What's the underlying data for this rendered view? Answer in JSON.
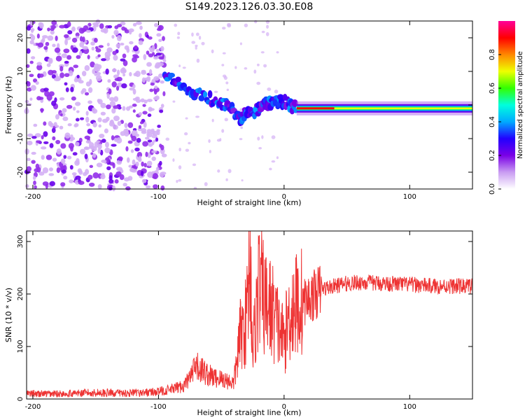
{
  "title": "S149.2023.126.03.30.E08",
  "chart_data": [
    {
      "type": "heatmap",
      "xlabel": "Height of straight line (km)",
      "ylabel": "Frequency (Hz)",
      "xlim": [
        -205,
        150
      ],
      "ylim": [
        -25,
        25
      ],
      "xticks": [
        -200,
        -100,
        0,
        100
      ],
      "yticks": [
        -20,
        -10,
        0,
        10,
        20
      ],
      "colorbar": {
        "label": "Normalized spectral amplitude",
        "range": [
          0,
          1
        ],
        "ticks": [
          "0.0",
          "0.2",
          "0.4",
          "0.6",
          "0.8"
        ],
        "colors": [
          "#ffffff",
          "#c99cf2",
          "#7a00e6",
          "#2200ff",
          "#00aaff",
          "#00ffdd",
          "#33ff00",
          "#eeff00",
          "#ff8800",
          "#ff0000",
          "#ff0099"
        ]
      },
      "features": [
        {
          "name": "noise",
          "x_range": [
            -205,
            -95
          ],
          "freq_range": [
            -25,
            25
          ],
          "amplitude": 0.1
        },
        {
          "name": "transition",
          "points": [
            [
              -95,
              9
            ],
            [
              -80,
              5
            ],
            [
              -60,
              2
            ],
            [
              -45,
              0
            ],
            [
              -35,
              -4
            ],
            [
              -30,
              -2
            ],
            [
              -20,
              -1.5
            ],
            [
              -10,
              1
            ],
            [
              0,
              1
            ],
            [
              10,
              -1
            ]
          ],
          "amplitude": 0.25
        },
        {
          "name": "carrier",
          "x_range": [
            10,
            150
          ],
          "freq": -1,
          "amplitude": 0.9
        }
      ]
    },
    {
      "type": "line",
      "xlabel": "Height of straight line (km)",
      "ylabel": "SNR (10 * v/v)",
      "xlim": [
        -205,
        150
      ],
      "ylim": [
        0,
        320
      ],
      "xticks": [
        -200,
        -100,
        0,
        100
      ],
      "yticks": [
        0,
        100,
        200,
        300
      ],
      "color": "#ee3333",
      "series": [
        {
          "x": [
            -205,
            -180,
            -150,
            -120,
            -100,
            -90,
            -80,
            -75,
            -70,
            -65,
            -60,
            -55,
            -50,
            -45,
            -40,
            -35,
            -30,
            -27,
            -25,
            -20,
            -15,
            -10,
            -5,
            0,
            5,
            10,
            20,
            30,
            40,
            50,
            60,
            80,
            100,
            120,
            150
          ],
          "y": [
            10,
            10,
            12,
            11,
            14,
            18,
            25,
            40,
            60,
            55,
            45,
            40,
            38,
            35,
            30,
            120,
            150,
            300,
            90,
            220,
            180,
            170,
            140,
            110,
            170,
            180,
            190,
            210,
            215,
            220,
            222,
            220,
            218,
            215,
            215
          ]
        }
      ]
    }
  ]
}
